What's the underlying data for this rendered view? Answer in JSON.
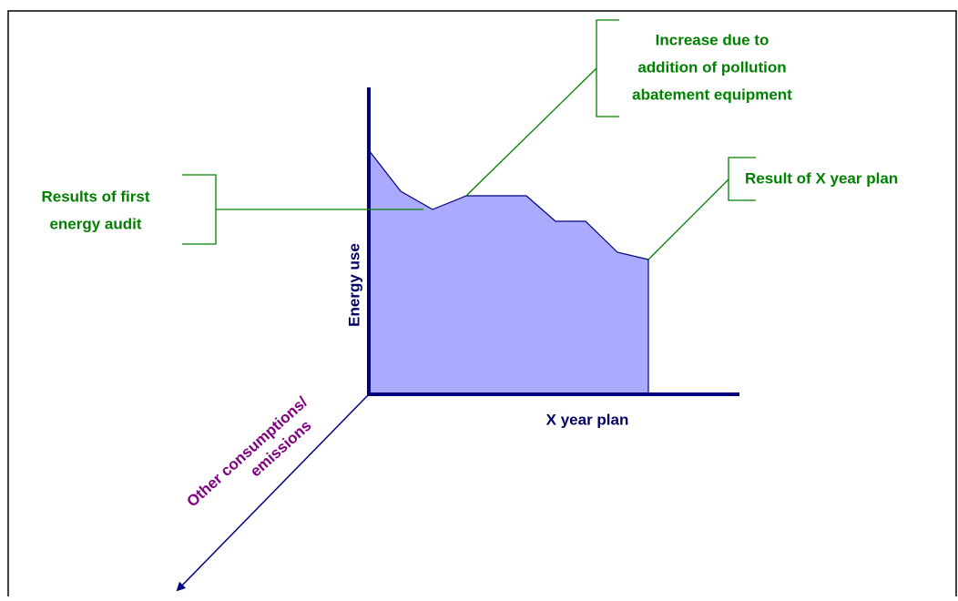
{
  "axes": {
    "y_label": "Energy use",
    "x_label": "X year plan",
    "z_label": [
      "Other consumptions/",
      "emissions"
    ]
  },
  "annotations": [
    {
      "lines": [
        "Increase due to",
        "addition of pollution",
        "abatement equipment"
      ]
    },
    {
      "lines": [
        "Result of X year plan"
      ]
    },
    {
      "lines": [
        "Results of first",
        "energy audit"
      ]
    }
  ]
}
